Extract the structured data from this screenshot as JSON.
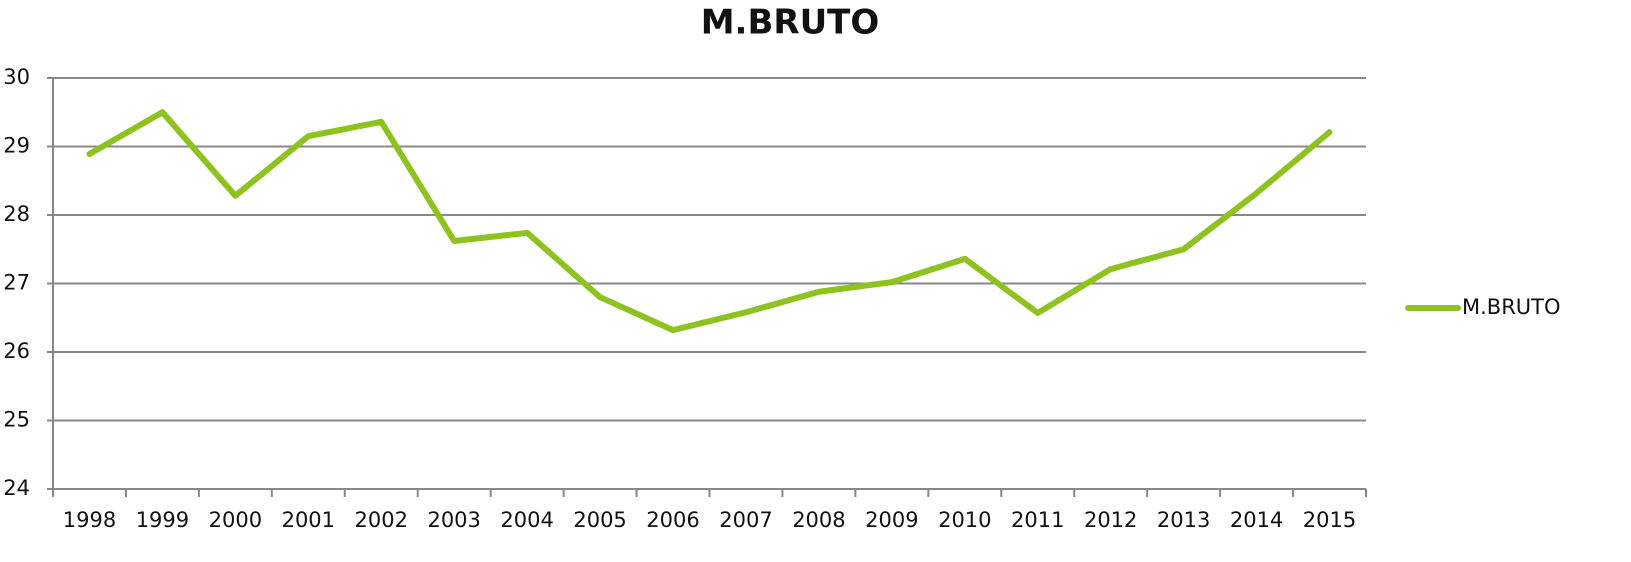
{
  "chart_data": {
    "type": "line",
    "title": "M.BRUTO",
    "categories": [
      "1998",
      "1999",
      "2000",
      "2001",
      "2002",
      "2003",
      "2004",
      "2005",
      "2006",
      "2007",
      "2008",
      "2009",
      "2010",
      "2011",
      "2012",
      "2013",
      "2014",
      "2015"
    ],
    "series": [
      {
        "name": "M.BRUTO",
        "color": "#8dc21f",
        "values": [
          28.89,
          29.5,
          28.28,
          29.15,
          29.36,
          27.62,
          27.74,
          26.8,
          26.32,
          26.58,
          26.88,
          27.02,
          27.36,
          26.57,
          27.21,
          27.5,
          28.32,
          29.21
        ]
      }
    ],
    "ylim": [
      24,
      30
    ],
    "yticks": [
      24,
      25,
      26,
      27,
      28,
      29,
      30
    ],
    "grid": true,
    "legend": "right"
  }
}
